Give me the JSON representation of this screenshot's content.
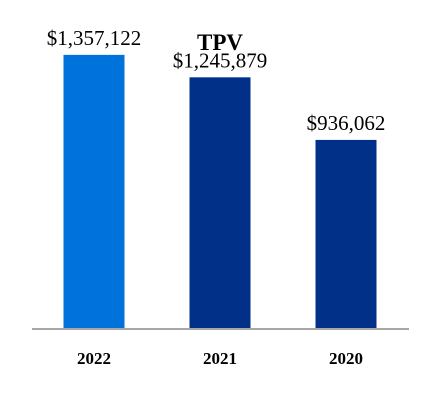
{
  "chart_data": {
    "type": "bar",
    "title": "TPV",
    "categories": [
      "2022",
      "2021",
      "2020"
    ],
    "values": [
      1357122,
      1245879,
      936062
    ],
    "value_labels": [
      "$1,357,122",
      "$1,245,879",
      "$936,062"
    ],
    "bar_colors": [
      "#0072DB",
      "#003087",
      "#003087"
    ],
    "axis_color": "#A6A6A6",
    "ylim": [
      0,
      1500000
    ],
    "grid": false,
    "legend": "none",
    "xlabel": "",
    "ylabel": ""
  }
}
